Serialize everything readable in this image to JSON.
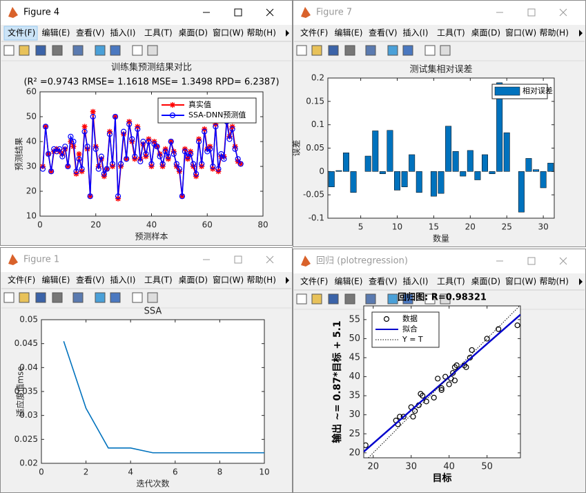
{
  "windows": [
    {
      "title": "Figure 4"
    },
    {
      "title": "Figure 7"
    },
    {
      "title": "Figure 1"
    },
    {
      "title": "回归 (plotregression)"
    }
  ],
  "menu": [
    "文件(F)",
    "编辑(E)",
    "查看(V)",
    "插入(I)",
    "工具(T)",
    "桌面(D)",
    "窗口(W)",
    "帮助(H)"
  ],
  "chart_data": [
    {
      "type": "line",
      "title": "训练集预测结果对比",
      "subtitle": "(R² =0.9743 RMSE= 1.1618 MSE= 1.3498 RPD= 6.2387)",
      "x_label": "预测样本",
      "y_label": "预测结果",
      "x": [
        1,
        2,
        3,
        4,
        5,
        6,
        7,
        8,
        9,
        10,
        11,
        12,
        13,
        14,
        15,
        16,
        17,
        18,
        19,
        20,
        21,
        22,
        23,
        24,
        25,
        26,
        27,
        28,
        29,
        30,
        31,
        32,
        33,
        34,
        35,
        36,
        37,
        38,
        39,
        40,
        41,
        42,
        43,
        44,
        45,
        46,
        47,
        48,
        49,
        50,
        51,
        52,
        53,
        54,
        55,
        56,
        57,
        58,
        59,
        60,
        61,
        62,
        63,
        64,
        65,
        66,
        67,
        68,
        69,
        70,
        71,
        72
      ],
      "series": [
        {
          "name": "真实值",
          "color": "#ff0000",
          "marker": "*",
          "line": "solid",
          "values": [
            30,
            46,
            35,
            28,
            36,
            37,
            36,
            35,
            37,
            30,
            40,
            38,
            27,
            35,
            28,
            46,
            37,
            18,
            52,
            38,
            30,
            33,
            26,
            29,
            44,
            30,
            50,
            17,
            30,
            43,
            33,
            48,
            40,
            33,
            46,
            33,
            39,
            34,
            41,
            30,
            40,
            38,
            35,
            30,
            37,
            33,
            40,
            36,
            30,
            28,
            18,
            37,
            33,
            36,
            30,
            26,
            41,
            30,
            45,
            37,
            38,
            29,
            47,
            28,
            34,
            34,
            49,
            42,
            46,
            38,
            32,
            31
          ]
        },
        {
          "name": "SSA-DNN预测值",
          "color": "#0000ff",
          "marker": "o",
          "line": "solid",
          "values": [
            29,
            46,
            35,
            28,
            37,
            36,
            37,
            34,
            38,
            30,
            42,
            40,
            28,
            33,
            29,
            44,
            38,
            18,
            50,
            37,
            29,
            34,
            27,
            29,
            43,
            31,
            50,
            18,
            31,
            44,
            33,
            47,
            41,
            34,
            45,
            32,
            40,
            35,
            40,
            31,
            39,
            38,
            34,
            31,
            36,
            34,
            40,
            35,
            31,
            29,
            18,
            36,
            34,
            35,
            31,
            27,
            40,
            31,
            44,
            36,
            37,
            30,
            46,
            29,
            35,
            33,
            48,
            41,
            45,
            37,
            33,
            31
          ]
        }
      ],
      "xlim": [
        0,
        80
      ],
      "xticks": [
        0,
        20,
        40,
        60,
        80
      ],
      "ylim": [
        10,
        60
      ],
      "yticks": [
        10,
        20,
        30,
        40,
        50,
        60
      ],
      "legend": "northeast"
    },
    {
      "type": "bar",
      "title": "测试集相对误差",
      "x_label": "数量",
      "y_label": "误差",
      "x": [
        1,
        2,
        3,
        4,
        5,
        6,
        7,
        8,
        9,
        10,
        11,
        12,
        13,
        14,
        15,
        16,
        17,
        18,
        19,
        20,
        21,
        22,
        23,
        24,
        25,
        26,
        27,
        28,
        29,
        30,
        31
      ],
      "series": [
        {
          "name": "相对误差",
          "color": "#0072bd",
          "values": [
            -0.033,
            0.002,
            0.04,
            -0.045,
            0,
            0.033,
            0.087,
            -0.005,
            0.088,
            -0.04,
            -0.033,
            0.036,
            -0.045,
            0,
            -0.053,
            -0.047,
            0.097,
            0.043,
            -0.01,
            0.045,
            -0.018,
            0.036,
            -0.005,
            0.19,
            0.083,
            0,
            -0.087,
            0.028,
            0.004,
            -0.035,
            0.018
          ]
        }
      ],
      "xlim": [
        0.5,
        31.5
      ],
      "xticks": [
        5,
        10,
        15,
        20,
        25,
        30
      ],
      "ylim": [
        -0.1,
        0.2
      ],
      "yticks": [
        -0.1,
        -0.05,
        0,
        0.05,
        0.1,
        0.15,
        0.2
      ],
      "legend": "northeast"
    },
    {
      "type": "line",
      "title": "SSA",
      "x_label": "迭代次数",
      "y_label": "适应度值mse",
      "x": [
        1,
        2,
        3,
        4,
        5,
        6,
        7,
        8,
        9,
        10
      ],
      "series": [
        {
          "color": "#0072bd",
          "line": "solid",
          "values": [
            0.0455,
            0.0315,
            0.0232,
            0.0232,
            0.0222,
            0.0222,
            0.0222,
            0.0222,
            0.0222,
            0.0222
          ]
        }
      ],
      "xlim": [
        0,
        10
      ],
      "xticks": [
        0,
        2,
        4,
        6,
        8,
        10
      ],
      "ylim": [
        0.02,
        0.05
      ],
      "yticks": [
        0.02,
        0.025,
        0.03,
        0.035,
        0.04,
        0.045,
        0.05
      ]
    },
    {
      "type": "scatter",
      "title": "回归图: R=0.98321",
      "x_label": "目标",
      "y_label": "输出 ~= 0.87*目标 + 5.1",
      "series": [
        {
          "name": "数据",
          "color": "#000000",
          "marker": "o",
          "line": "none",
          "x": [
            18,
            26,
            27,
            26.5,
            30,
            30.5,
            31,
            32,
            32.5,
            33,
            34,
            36,
            37,
            38,
            38,
            39,
            40,
            40.5,
            41,
            41.5,
            42,
            41.5,
            44,
            44.5,
            45.5,
            46,
            50,
            53,
            58,
            28
          ],
          "values": [
            22,
            28.5,
            29.5,
            27.5,
            32,
            29.5,
            31,
            32.5,
            35.5,
            35,
            33.5,
            34.5,
            39.5,
            36.5,
            37,
            40,
            38,
            39.5,
            41,
            42.5,
            43,
            39,
            43,
            42.5,
            45,
            47,
            50,
            52.5,
            53.5,
            29.5
          ]
        },
        {
          "name": "拟合",
          "color": "#0000cc",
          "line": "solid",
          "x": [
            17.5,
            58.8
          ],
          "values": [
            20.3,
            56.3
          ]
        },
        {
          "name": "Y = T",
          "color": "#000000",
          "line": "dotted",
          "x": [
            18.7,
            58.6
          ],
          "values": [
            18.7,
            58.6
          ]
        }
      ],
      "xlim": [
        17.5,
        58.8
      ],
      "xticks": [
        20,
        30,
        40,
        50
      ],
      "ylim": [
        18.7,
        58.6
      ],
      "yticks": [
        20,
        25,
        30,
        35,
        40,
        45,
        50,
        55
      ],
      "legend": "northwest"
    }
  ]
}
